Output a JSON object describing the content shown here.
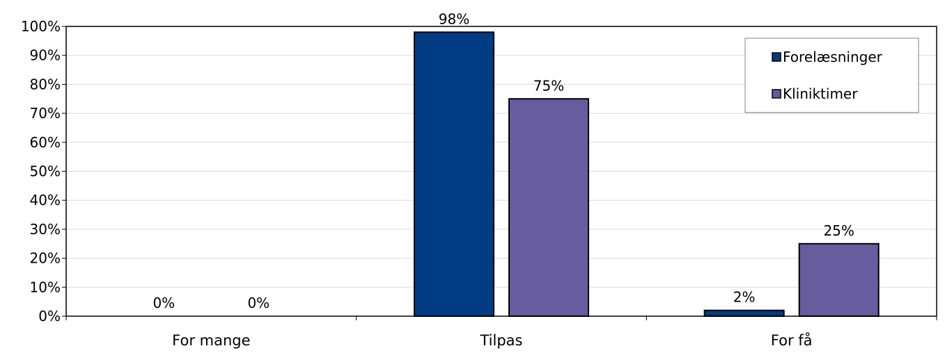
{
  "chart_data": {
    "type": "bar",
    "title": "",
    "xlabel": "",
    "ylabel": "",
    "categories": [
      "For mange",
      "Tilpas",
      "For få"
    ],
    "series": [
      {
        "name": "Forelæsninger",
        "color": "#003C83",
        "values": [
          0,
          98,
          2
        ],
        "labels": [
          "0%",
          "98%",
          "2%"
        ]
      },
      {
        "name": "Kliniktimer",
        "color": "#665C9E",
        "values": [
          0,
          75,
          25
        ],
        "labels": [
          "0%",
          "75%",
          "25%"
        ]
      }
    ],
    "ylim": [
      0,
      100
    ],
    "yticks": [
      0,
      10,
      20,
      30,
      40,
      50,
      60,
      70,
      80,
      90,
      100
    ],
    "ytick_labels": [
      "0%",
      "10%",
      "20%",
      "30%",
      "40%",
      "50%",
      "60%",
      "70%",
      "80%",
      "90%",
      "100%"
    ],
    "grid": true,
    "legend_position": "top-right"
  }
}
